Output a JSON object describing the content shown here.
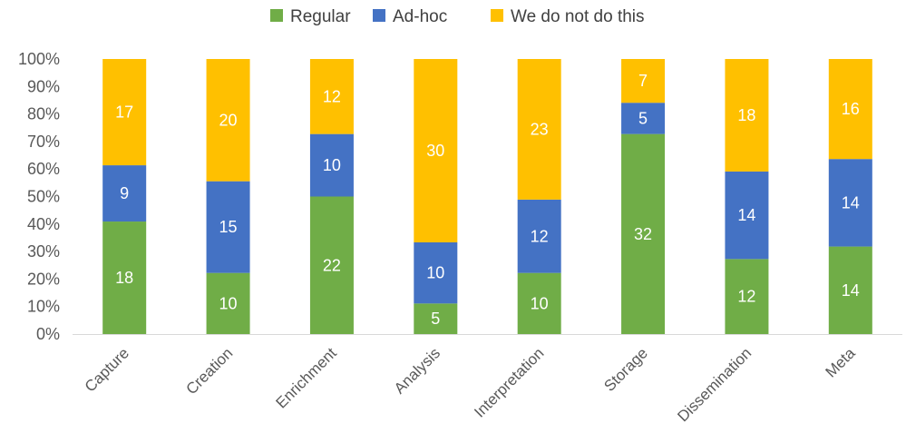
{
  "chart_data": {
    "type": "bar",
    "stacked": true,
    "normalized": true,
    "categories": [
      "Capture",
      "Creation",
      "Enrichment",
      "Analysis",
      "Interpretation",
      "Storage",
      "Dissemination",
      "Meta"
    ],
    "series": [
      {
        "name": "Regular",
        "color": "#70ad47",
        "values": [
          18,
          10,
          22,
          5,
          10,
          32,
          12,
          14
        ]
      },
      {
        "name": "Ad-hoc",
        "color": "#4472c4",
        "values": [
          9,
          15,
          10,
          10,
          12,
          5,
          14,
          14
        ]
      },
      {
        "name": "We do not do this",
        "color": "#ffc000",
        "values": [
          17,
          20,
          12,
          30,
          23,
          7,
          18,
          16
        ]
      }
    ],
    "y_ticks": [
      "0%",
      "10%",
      "20%",
      "30%",
      "40%",
      "50%",
      "60%",
      "70%",
      "80%",
      "90%",
      "100%"
    ],
    "ylim": [
      0,
      100
    ],
    "legend_position": "top-center",
    "grid": false
  }
}
